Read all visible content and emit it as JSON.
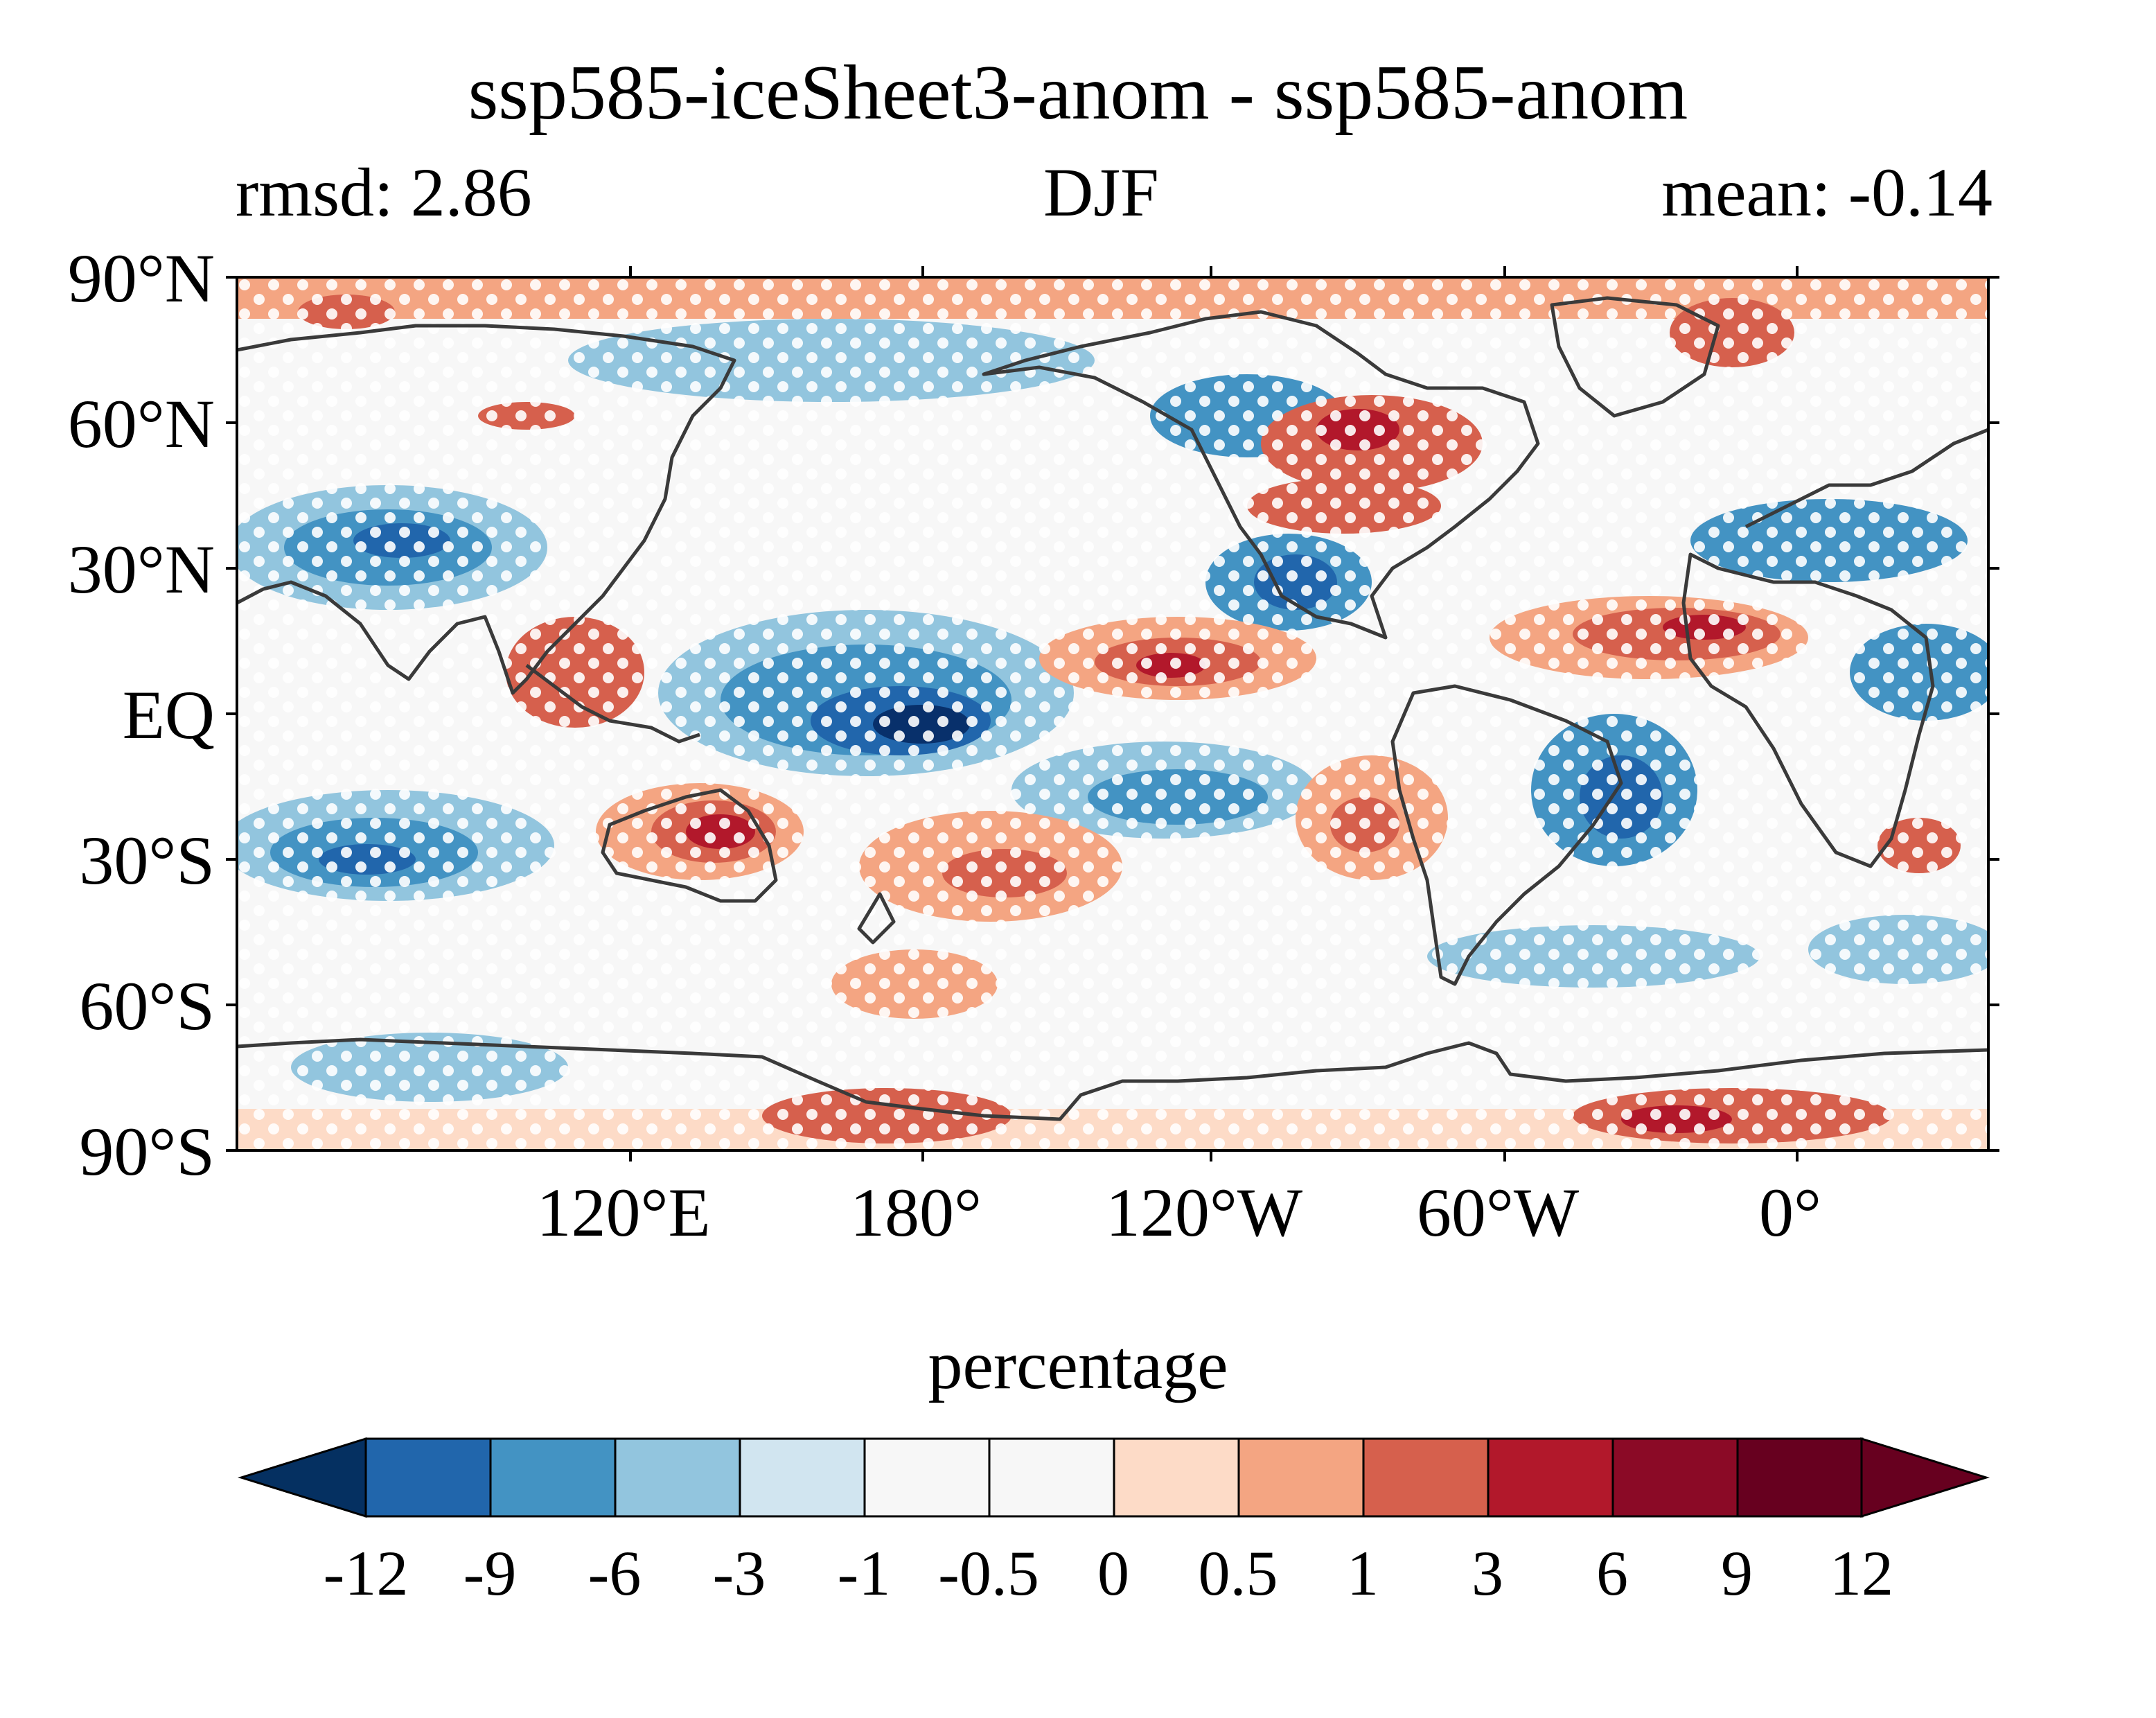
{
  "title": "ssp585-iceSheet3-anom - ssp585-anom",
  "subtitle_left": "rmsd: 2.86",
  "subtitle_center": "DJF",
  "subtitle_right": "mean: -0.14",
  "colorbar_label": "percentage",
  "lat_labels": [
    "90°N",
    "60°N",
    "30°N",
    "EQ",
    "30°S",
    "60°S",
    "90°S"
  ],
  "lon_labels": [
    "120°E",
    "180°",
    "120°W",
    "60°W",
    "0°"
  ],
  "colorbar": {
    "ticks": [
      "-12",
      "-9",
      "-6",
      "-3",
      "-1",
      "-0.5",
      "0",
      "0.5",
      "1",
      "3",
      "6",
      "9",
      "12"
    ],
    "colors": [
      "#053061",
      "#08306b",
      "#2166ac",
      "#4393c3",
      "#92c5de",
      "#d1e5f0",
      "#f7f7f7",
      "#f7f7f7",
      "#fddbc7",
      "#f4a582",
      "#d6604d",
      "#b2182b",
      "#8b0a26",
      "#67001f"
    ]
  },
  "map": {
    "lon_range": [
      40,
      400
    ],
    "lat_range": [
      -90,
      90
    ],
    "stippling": true
  }
}
